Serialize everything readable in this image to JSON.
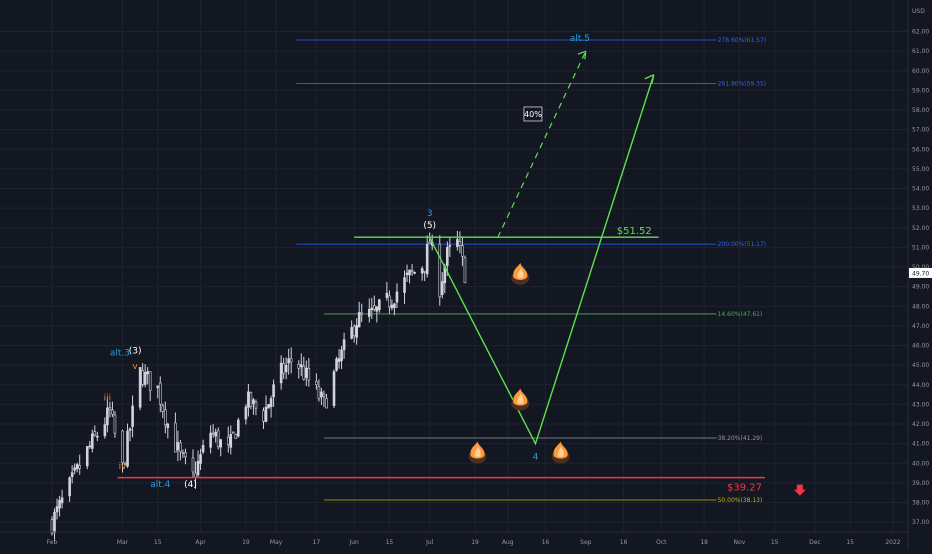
{
  "chart": {
    "currency": "USD",
    "price_last": "49.70"
  },
  "colors": {
    "background": "#131722",
    "grid": "#1f2330",
    "candle": "#d1d4dc",
    "fib_blue": "#2962ff",
    "fib_green": "#4caf50",
    "fib_white": "#9598a1",
    "fib_yellow": "#c8b400",
    "support_red": "#f23645",
    "projection_green": "#5ee04f",
    "wave_blue": "#2c9ad9",
    "wave_orange": "#f08a24",
    "wave_white": "#ffffff",
    "flame": "#ff9a3c"
  },
  "chart_data": {
    "type": "candlestick",
    "y_range": [
      36.5,
      63.2
    ],
    "y_ticks": [
      "37.00",
      "38.00",
      "39.00",
      "40.00",
      "41.00",
      "42.00",
      "43.00",
      "44.00",
      "45.00",
      "46.00",
      "47.00",
      "48.00",
      "49.00",
      "50.00",
      "51.00",
      "52.00",
      "53.00",
      "54.00",
      "55.00",
      "56.00",
      "57.00",
      "58.00",
      "59.00",
      "60.00",
      "61.00",
      "62.00"
    ],
    "x_ticks": [
      "Feb",
      "Mar",
      "15",
      "Apr",
      "19",
      "May",
      "17",
      "Jun",
      "15",
      "Jul",
      "19",
      "Aug",
      "16",
      "Sep",
      "16",
      "Oct",
      "18",
      "Nov",
      "15",
      "Dec",
      "15",
      "2022"
    ],
    "x_tick_dates": [
      "2021-02-01",
      "2021-03-01",
      "2021-03-15",
      "2021-04-01",
      "2021-04-19",
      "2021-05-01",
      "2021-05-17",
      "2021-06-01",
      "2021-06-15",
      "2021-07-01",
      "2021-07-19",
      "2021-08-01",
      "2021-08-16",
      "2021-09-01",
      "2021-09-16",
      "2021-10-01",
      "2021-10-18",
      "2021-11-01",
      "2021-11-15",
      "2021-12-01",
      "2021-12-15",
      "2022-01-01"
    ],
    "price_path": [
      [
        "2021-02-01",
        37.0
      ],
      [
        "2021-02-15",
        40.6
      ],
      [
        "2021-02-24",
        42.6
      ],
      [
        "2021-03-01",
        39.7
      ],
      [
        "2021-03-08",
        44.6
      ],
      [
        "2021-03-15",
        43.8
      ],
      [
        "2021-03-19",
        42.0
      ],
      [
        "2021-03-24",
        40.3
      ],
      [
        "2021-03-29",
        39.3
      ],
      [
        "2021-04-05",
        41.6
      ],
      [
        "2021-04-12",
        40.6
      ],
      [
        "2021-04-19",
        43.2
      ],
      [
        "2021-04-26",
        42.5
      ],
      [
        "2021-05-03",
        44.6
      ],
      [
        "2021-05-08",
        45.4
      ],
      [
        "2021-05-14",
        44.2
      ],
      [
        "2021-05-20",
        43.0
      ],
      [
        "2021-05-26",
        45.2
      ],
      [
        "2021-06-02",
        47.3
      ],
      [
        "2021-06-09",
        47.6
      ],
      [
        "2021-06-15",
        48.3
      ],
      [
        "2021-06-22",
        49.4
      ],
      [
        "2021-06-29",
        50.2
      ],
      [
        "2021-07-01",
        51.3
      ],
      [
        "2021-07-05",
        49.0
      ],
      [
        "2021-07-08",
        50.6
      ],
      [
        "2021-07-12",
        51.2
      ],
      [
        "2021-07-15",
        49.7
      ]
    ],
    "fib_levels": [
      {
        "label": "278.60%(61.57)",
        "price": 61.57,
        "color_key": "fib_blue"
      },
      {
        "label": "261.80%(59.35)",
        "price": 59.35,
        "color_key": "fib_blue"
      },
      {
        "label": "200.00%(51.17)",
        "price": 51.17,
        "color_key": "fib_blue"
      },
      {
        "label": "14.60%(47.61)",
        "price": 47.61,
        "color_key": "fib_green"
      },
      {
        "label": "38.20%(41.29)",
        "price": 41.29,
        "color_key": "fib_white"
      },
      {
        "label": "50.00%(38.13)",
        "price": 38.13,
        "color_key": "fib_yellow"
      }
    ],
    "resistance": {
      "label": "$51.52",
      "price": 51.52
    },
    "support": {
      "label": "$39.27",
      "price": 39.27
    },
    "projection_path": [
      [
        "2021-07-01",
        51.5
      ],
      [
        "2021-08-12",
        41.0
      ],
      [
        "2021-09-28",
        59.8
      ]
    ],
    "alt_projection": {
      "from": [
        "2021-07-28",
        51.5
      ],
      "to": [
        "2021-09-01",
        61.0
      ],
      "label": "alt.5"
    },
    "probability_label": "40%",
    "wave_labels": [
      {
        "text": "alt.3",
        "date": "2021-02-28",
        "price": 45.5,
        "color_key": "wave_blue"
      },
      {
        "text": "(3)",
        "date": "2021-03-06",
        "price": 45.6,
        "color_key": "wave_white"
      },
      {
        "text": "v",
        "date": "2021-03-06",
        "price": 44.8,
        "color_key": "wave_orange"
      },
      {
        "text": "iii",
        "date": "2021-02-23",
        "price": 43.2,
        "color_key": "wave_orange"
      },
      {
        "text": "iv",
        "date": "2021-03-01",
        "price": 39.7,
        "color_key": "wave_orange"
      },
      {
        "text": "alt.4",
        "date": "2021-03-16",
        "price": 38.8,
        "color_key": "wave_blue"
      },
      {
        "text": "(4)",
        "date": "2021-03-28",
        "price": 38.8,
        "color_key": "wave_white"
      },
      {
        "text": "3",
        "date": "2021-07-01",
        "price": 52.6,
        "color_key": "wave_blue"
      },
      {
        "text": "(5)",
        "date": "2021-07-01",
        "price": 52.0,
        "color_key": "wave_white"
      },
      {
        "text": "4",
        "date": "2021-08-12",
        "price": 40.2,
        "color_key": "wave_blue"
      }
    ],
    "flames": [
      {
        "date": "2021-08-06",
        "price": 49.6
      },
      {
        "date": "2021-08-06",
        "price": 43.2
      },
      {
        "date": "2021-07-20",
        "price": 40.5
      },
      {
        "date": "2021-08-22",
        "price": 40.5
      }
    ]
  }
}
